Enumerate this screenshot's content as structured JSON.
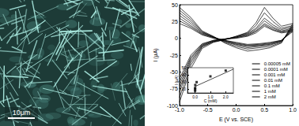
{
  "image_panel": {
    "scale_bar": "10μm"
  },
  "chart_data": [
    {
      "type": "line",
      "xlabel": "E (V vs. SCE)",
      "ylabel": "I (μA)",
      "x": [
        -1.0,
        -0.8,
        -0.6,
        -0.4,
        -0.2,
        0.0,
        0.2,
        0.35,
        0.5,
        0.65,
        0.8,
        1.0,
        1.0,
        0.8,
        0.6,
        0.4,
        0.2,
        0.0,
        -0.2,
        -0.4,
        -0.6,
        -0.8,
        -1.0
      ],
      "series": [
        {
          "name": "0.00005 mM",
          "color": "#000000",
          "line_style": "solid",
          "values": [
            -60,
            -25,
            -8,
            -3,
            -1,
            0,
            3,
            8,
            18,
            12,
            8,
            10,
            10,
            -3,
            -6,
            -8,
            -9,
            -6,
            -3,
            0,
            5,
            15,
            22
          ]
        },
        {
          "name": "0.0001 mM",
          "color": "#000000",
          "line_style": "solid",
          "values": [
            -65,
            -28,
            -9,
            -3,
            -1,
            1,
            4,
            10,
            20,
            13,
            9,
            12,
            12,
            -3,
            -7,
            -9,
            -10,
            -7,
            -3,
            1,
            6,
            17,
            26
          ]
        },
        {
          "name": "0.001 mM",
          "color": "#000000",
          "line_style": "solid",
          "values": [
            -70,
            -30,
            -10,
            -4,
            -1,
            1,
            5,
            11,
            22,
            15,
            10,
            13,
            13,
            -4,
            -8,
            -10,
            -11,
            -8,
            -4,
            1,
            7,
            19,
            30
          ]
        },
        {
          "name": "0.01 mM",
          "color": "#000000",
          "line_style": "solid",
          "values": [
            -75,
            -33,
            -11,
            -4,
            -1,
            2,
            6,
            13,
            26,
            17,
            11,
            15,
            15,
            -4,
            -9,
            -11,
            -12,
            -9,
            -4,
            2,
            8,
            22,
            34
          ]
        },
        {
          "name": "0.1 mM",
          "color": "#000000",
          "line_style": "solid",
          "values": [
            -80,
            -36,
            -12,
            -5,
            -2,
            2,
            7,
            15,
            30,
            20,
            13,
            17,
            17,
            -5,
            -10,
            -12,
            -14,
            -10,
            -5,
            2,
            9,
            25,
            38
          ]
        },
        {
          "name": "1 mM",
          "color": "#000000",
          "line_style": "solid",
          "values": [
            -88,
            -40,
            -13,
            -5,
            -2,
            3,
            8,
            19,
            38,
            25,
            15,
            19,
            19,
            -6,
            -12,
            -14,
            -16,
            -12,
            -6,
            2,
            10,
            28,
            42
          ]
        },
        {
          "name": "2 mM",
          "color": "#000000",
          "line_style": "solid",
          "values": [
            -95,
            -45,
            -15,
            -6,
            -2,
            3,
            9,
            23,
            46,
            30,
            18,
            22,
            22,
            -7,
            -14,
            -17,
            -19,
            -14,
            -7,
            3,
            11,
            31,
            46
          ]
        }
      ],
      "xlim": [
        -1.0,
        1.0
      ],
      "xticks": [
        {
          "value": -1.0,
          "label": "-1.0"
        },
        -0.5,
        {
          "value": 0.0,
          "label": "0.0"
        },
        0.5,
        {
          "value": 1.0,
          "label": "1.0"
        }
      ],
      "ylim": [
        -100,
        50
      ],
      "yticks": [
        -100,
        -75,
        -50,
        -25,
        0,
        25,
        50
      ],
      "legend": "lower right",
      "grid": false
    },
    {
      "type": "scatter",
      "xlabel": "C (mM)",
      "ylabel": "I (μA)",
      "series": [
        {
          "type": "scatter",
          "marker": "square",
          "color": "#000000",
          "x": [
            5e-05,
            0.0001,
            0.001,
            0.01,
            0.1,
            1,
            2
          ],
          "values": [
            18,
            20,
            22,
            26,
            30,
            38,
            46
          ]
        },
        {
          "type": "line",
          "line_style": "solid",
          "color": "#000000",
          "x": [
            0,
            2.5
          ],
          "values": [
            24,
            48
          ]
        }
      ],
      "xlim": [
        -0.5,
        2.5
      ],
      "xticks": [
        {
          "value": 0.0,
          "label": "0.0"
        },
        {
          "value": 1.0,
          "label": "1.0"
        },
        {
          "value": 2.0,
          "label": "2.0"
        }
      ],
      "ylim": [
        15,
        50
      ],
      "yticks": [
        20,
        30,
        40,
        50
      ],
      "grid": false
    }
  ]
}
